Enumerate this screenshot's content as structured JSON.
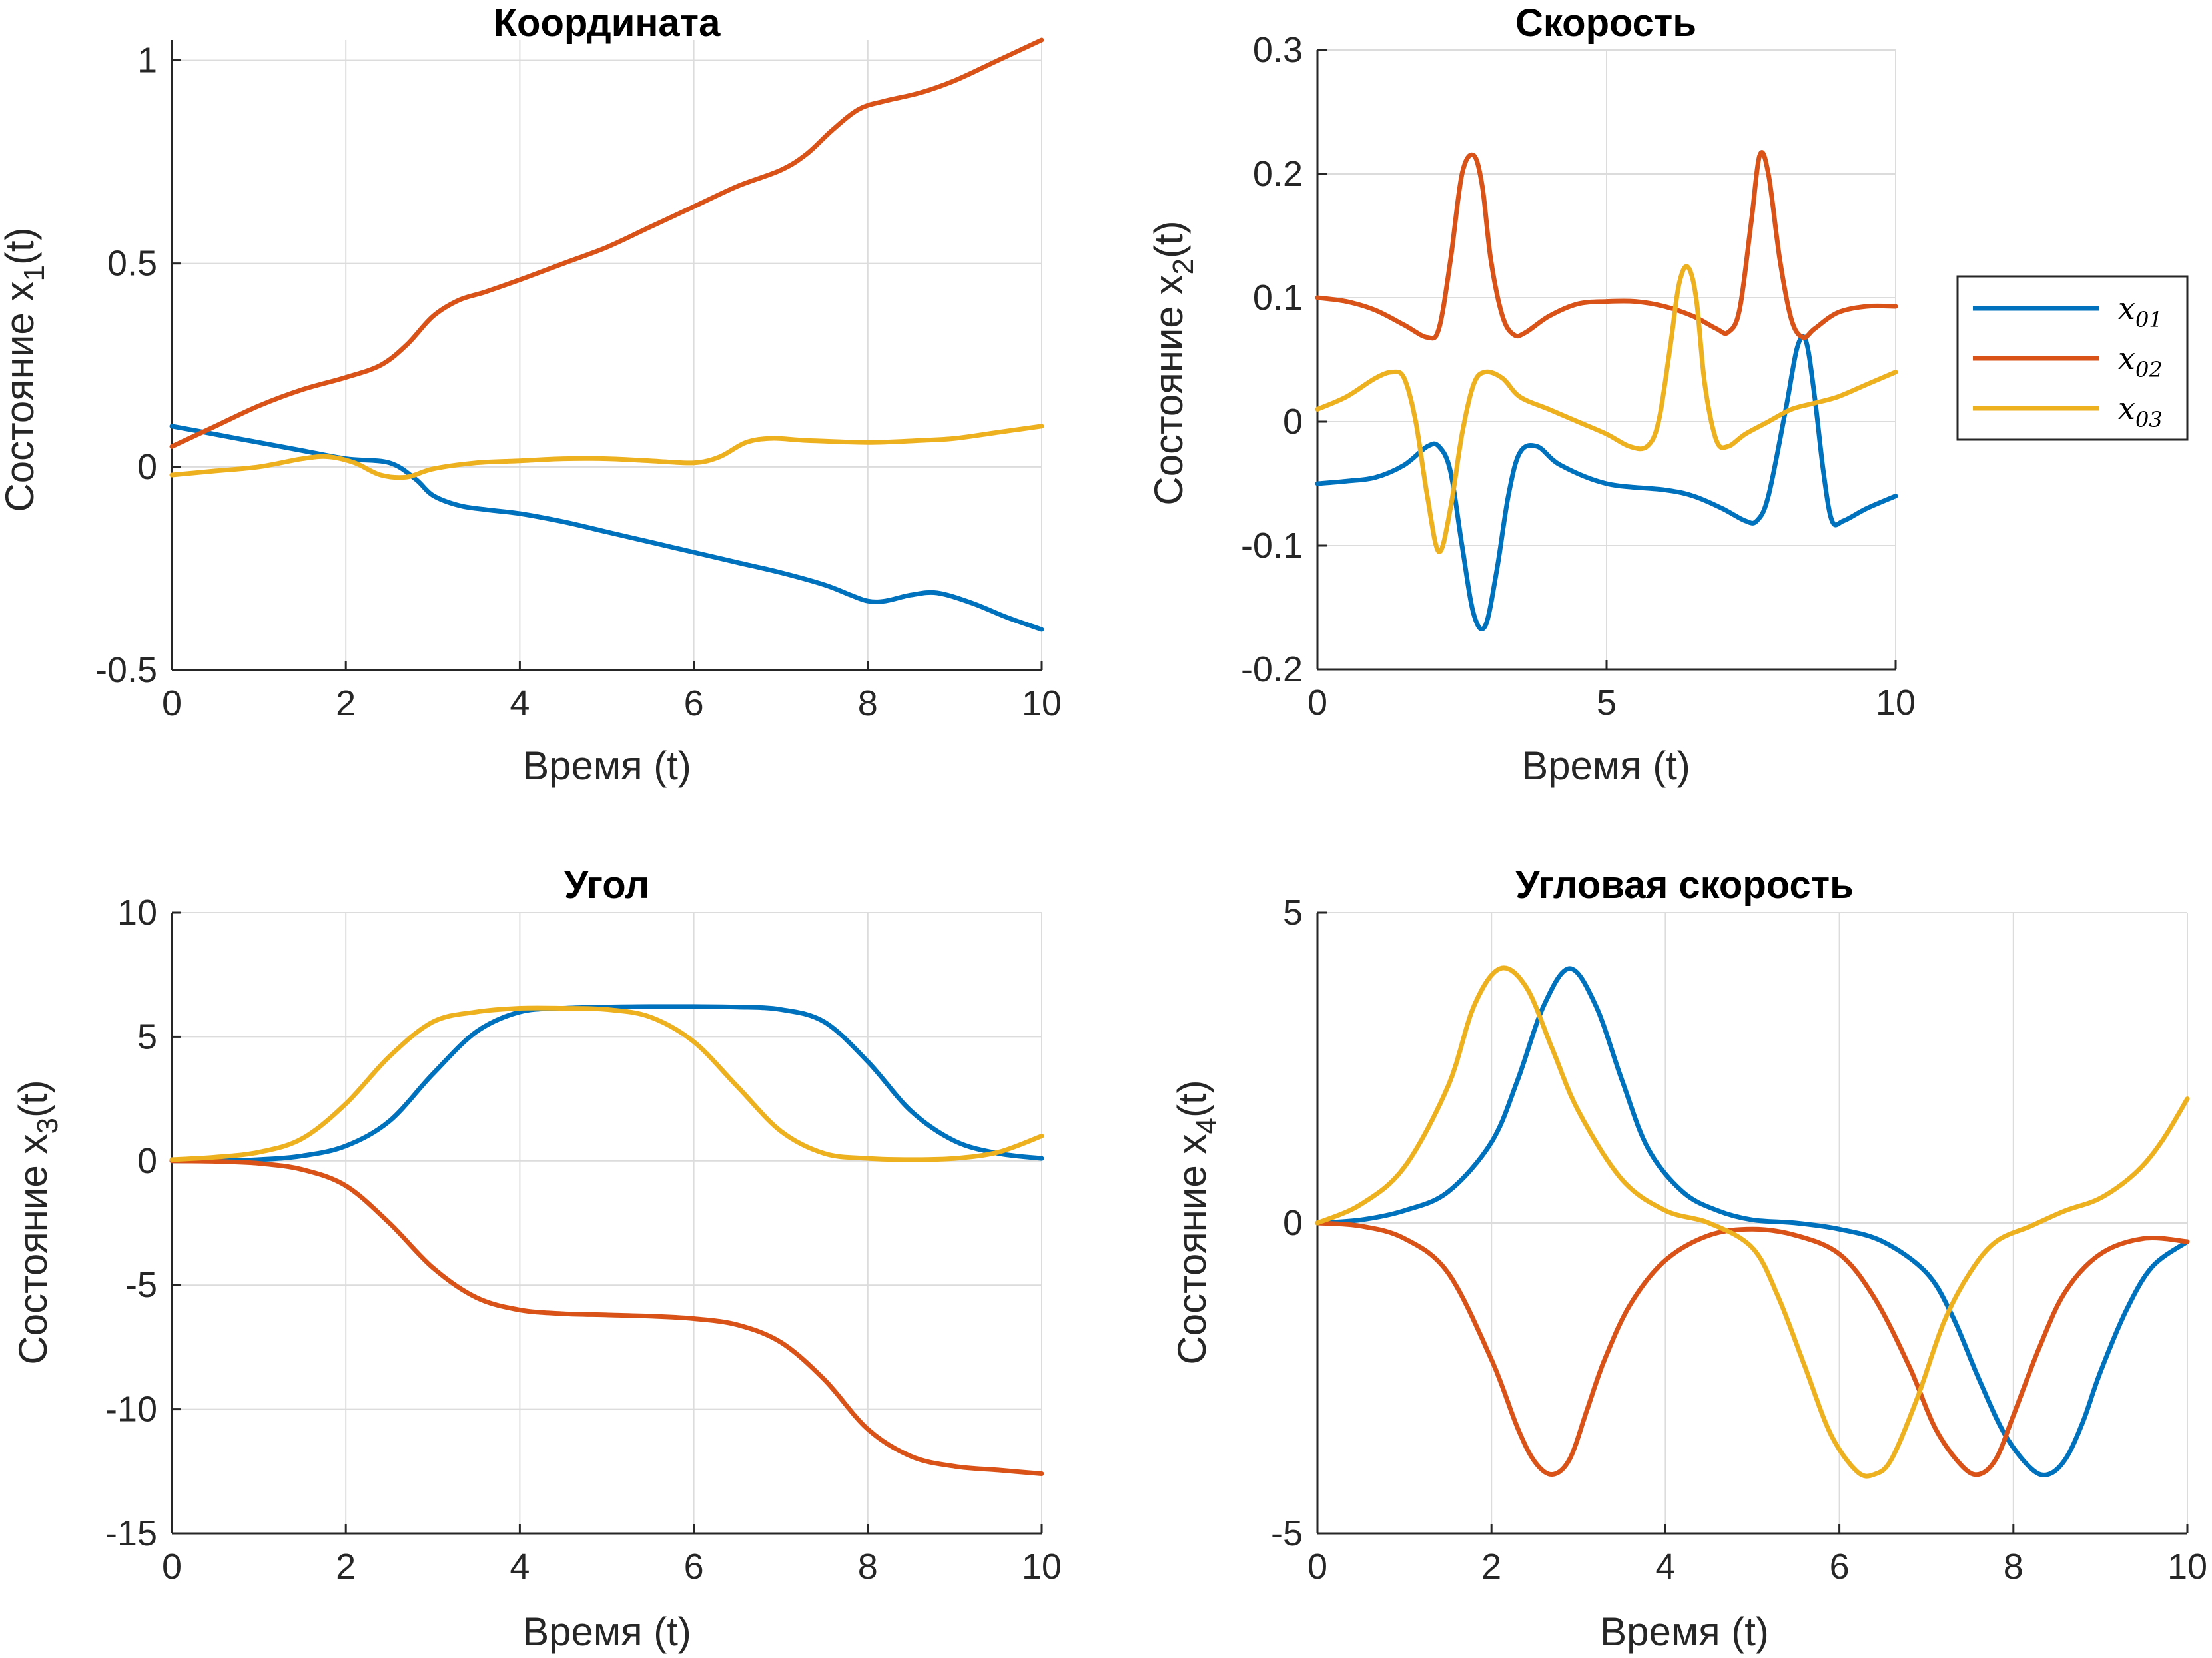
{
  "colors": {
    "x01": "#0072BD",
    "x02": "#D95319",
    "x03": "#EDB120",
    "grid": "#DCDCDC",
    "axis": "#262626"
  },
  "legend": {
    "entries": [
      {
        "key": "x01",
        "base": "x",
        "sub": "01"
      },
      {
        "key": "x02",
        "base": "x",
        "sub": "02"
      },
      {
        "key": "x03",
        "base": "x",
        "sub": "03"
      }
    ]
  },
  "chart_data": [
    {
      "type": "line",
      "title": "Координата",
      "xlabel": "Время (t)",
      "ylabel": {
        "base": "Состояние x",
        "sub": "1",
        "suffix": "(t)"
      },
      "xlim": [
        0,
        10
      ],
      "ylim": [
        -0.5,
        1.05
      ],
      "xticks": [
        0,
        2,
        4,
        6,
        8,
        10
      ],
      "yticks": [
        -0.5,
        0,
        0.5,
        1
      ],
      "ytick_labels": [
        "-0.5",
        "0",
        "0.5",
        "1"
      ],
      "grid": true,
      "series": [
        {
          "key": "x01",
          "x": [
            0,
            0.5,
            1,
            1.5,
            2,
            2.5,
            2.8,
            3,
            3.3,
            3.6,
            4,
            4.5,
            5,
            5.5,
            6,
            6.5,
            7,
            7.5,
            7.8,
            8,
            8.2,
            8.5,
            8.8,
            9.2,
            9.6,
            10
          ],
          "y": [
            0.1,
            0.08,
            0.06,
            0.04,
            0.02,
            0.01,
            -0.03,
            -0.07,
            -0.095,
            -0.105,
            -0.115,
            -0.135,
            -0.16,
            -0.185,
            -0.21,
            -0.235,
            -0.26,
            -0.29,
            -0.315,
            -0.33,
            -0.33,
            -0.315,
            -0.31,
            -0.335,
            -0.37,
            -0.4
          ]
        },
        {
          "key": "x02",
          "x": [
            0,
            0.5,
            1,
            1.5,
            2,
            2.4,
            2.7,
            3,
            3.3,
            3.6,
            4,
            4.5,
            5,
            5.5,
            6,
            6.5,
            7,
            7.3,
            7.6,
            7.9,
            8.2,
            8.6,
            9,
            9.5,
            10
          ],
          "y": [
            0.05,
            0.1,
            0.15,
            0.19,
            0.22,
            0.25,
            0.3,
            0.37,
            0.41,
            0.43,
            0.46,
            0.5,
            0.54,
            0.59,
            0.64,
            0.69,
            0.73,
            0.77,
            0.83,
            0.88,
            0.9,
            0.92,
            0.95,
            1.0,
            1.05
          ]
        },
        {
          "key": "x03",
          "x": [
            0,
            0.5,
            1,
            1.5,
            1.8,
            2.1,
            2.4,
            2.7,
            3,
            3.5,
            4,
            4.5,
            5,
            5.5,
            6,
            6.3,
            6.6,
            6.9,
            7.3,
            8,
            8.6,
            9,
            9.5,
            10
          ],
          "y": [
            -0.02,
            -0.01,
            0.0,
            0.02,
            0.025,
            0.01,
            -0.02,
            -0.025,
            -0.005,
            0.01,
            0.015,
            0.02,
            0.02,
            0.015,
            0.01,
            0.025,
            0.06,
            0.07,
            0.065,
            0.06,
            0.065,
            0.07,
            0.085,
            0.1
          ]
        }
      ]
    },
    {
      "type": "line",
      "title": "Скорость",
      "xlabel": "Время (t)",
      "ylabel": {
        "base": "Состояние x",
        "sub": "2",
        "suffix": "(t)"
      },
      "xlim": [
        0,
        10
      ],
      "ylim": [
        -0.2,
        0.3
      ],
      "xticks": [
        0,
        5,
        10
      ],
      "yticks": [
        -0.2,
        -0.1,
        0,
        0.1,
        0.2,
        0.3
      ],
      "ytick_labels": [
        "-0.2",
        "-0.1",
        "0",
        "0.1",
        "0.2",
        "0.3"
      ],
      "grid": true,
      "series": [
        {
          "key": "x01",
          "x": [
            0,
            0.5,
            1,
            1.5,
            1.9,
            2.1,
            2.3,
            2.5,
            2.7,
            2.9,
            3.1,
            3.3,
            3.5,
            3.8,
            4.2,
            5,
            6,
            6.5,
            7,
            7.4,
            7.6,
            7.8,
            8.1,
            8.3,
            8.45,
            8.6,
            8.75,
            8.9,
            9.1,
            9.5,
            10
          ],
          "y": [
            -0.05,
            -0.048,
            -0.045,
            -0.035,
            -0.02,
            -0.02,
            -0.04,
            -0.1,
            -0.155,
            -0.165,
            -0.12,
            -0.06,
            -0.025,
            -0.02,
            -0.035,
            -0.05,
            -0.055,
            -0.06,
            -0.07,
            -0.08,
            -0.08,
            -0.06,
            0.01,
            0.06,
            0.065,
            0.02,
            -0.04,
            -0.08,
            -0.08,
            -0.07,
            -0.06
          ]
        },
        {
          "key": "x02",
          "x": [
            0,
            0.5,
            1,
            1.5,
            1.9,
            2.1,
            2.3,
            2.5,
            2.7,
            2.85,
            3.0,
            3.2,
            3.4,
            3.6,
            4,
            4.5,
            5,
            5.5,
            6,
            6.5,
            6.9,
            7.1,
            7.3,
            7.5,
            7.65,
            7.8,
            8.0,
            8.2,
            8.4,
            8.6,
            9,
            9.5,
            10
          ],
          "y": [
            0.1,
            0.097,
            0.09,
            0.078,
            0.068,
            0.075,
            0.13,
            0.2,
            0.215,
            0.19,
            0.13,
            0.085,
            0.07,
            0.072,
            0.085,
            0.095,
            0.097,
            0.097,
            0.093,
            0.085,
            0.075,
            0.072,
            0.09,
            0.16,
            0.215,
            0.2,
            0.13,
            0.082,
            0.068,
            0.075,
            0.088,
            0.093,
            0.093
          ]
        },
        {
          "key": "x03",
          "x": [
            0,
            0.5,
            1,
            1.3,
            1.5,
            1.7,
            1.9,
            2.1,
            2.3,
            2.5,
            2.7,
            2.9,
            3.2,
            3.5,
            4,
            4.5,
            5,
            5.4,
            5.7,
            5.9,
            6.1,
            6.25,
            6.4,
            6.55,
            6.7,
            6.9,
            7.1,
            7.4,
            7.8,
            8.2,
            8.6,
            9,
            9.5,
            10
          ],
          "y": [
            0.01,
            0.02,
            0.035,
            0.04,
            0.035,
            0.0,
            -0.06,
            -0.105,
            -0.07,
            -0.01,
            0.03,
            0.04,
            0.035,
            0.02,
            0.01,
            0.0,
            -0.01,
            -0.02,
            -0.02,
            0.0,
            0.06,
            0.11,
            0.125,
            0.1,
            0.03,
            -0.015,
            -0.02,
            -0.01,
            0.0,
            0.01,
            0.015,
            0.02,
            0.03,
            0.04
          ]
        }
      ]
    },
    {
      "type": "line",
      "title": "Угол",
      "xlabel": "Время (t)",
      "ylabel": {
        "base": "Состояние x",
        "sub": "3",
        "suffix": "(t)"
      },
      "xlim": [
        0,
        10
      ],
      "ylim": [
        -15,
        10
      ],
      "xticks": [
        0,
        2,
        4,
        6,
        8,
        10
      ],
      "yticks": [
        -15,
        -10,
        -5,
        0,
        5,
        10
      ],
      "ytick_labels": [
        "-15",
        "-10",
        "-5",
        "0",
        "5",
        "10"
      ],
      "grid": true,
      "series": [
        {
          "key": "x01",
          "x": [
            0,
            0.5,
            1,
            1.5,
            2,
            2.5,
            3,
            3.5,
            4,
            4.5,
            5,
            5.5,
            6,
            6.5,
            7,
            7.5,
            8,
            8.5,
            9,
            9.5,
            10
          ],
          "y": [
            0,
            0.0,
            0.05,
            0.2,
            0.6,
            1.6,
            3.5,
            5.2,
            6.0,
            6.15,
            6.2,
            6.22,
            6.22,
            6.2,
            6.1,
            5.6,
            4.0,
            2.0,
            0.8,
            0.3,
            0.1
          ]
        },
        {
          "key": "x02",
          "x": [
            0,
            0.5,
            1,
            1.5,
            2,
            2.5,
            3,
            3.5,
            4,
            4.5,
            5,
            5.5,
            6,
            6.5,
            7,
            7.5,
            8,
            8.5,
            9,
            9.5,
            10
          ],
          "y": [
            0,
            -0.02,
            -0.1,
            -0.35,
            -1.0,
            -2.5,
            -4.3,
            -5.5,
            -6.0,
            -6.15,
            -6.2,
            -6.25,
            -6.35,
            -6.6,
            -7.3,
            -8.8,
            -10.8,
            -11.9,
            -12.3,
            -12.45,
            -12.6
          ]
        },
        {
          "key": "x03",
          "x": [
            0,
            0.5,
            1,
            1.5,
            2,
            2.5,
            3,
            3.5,
            4,
            4.5,
            5,
            5.5,
            6,
            6.5,
            7,
            7.5,
            8,
            8.5,
            9,
            9.5,
            10
          ],
          "y": [
            0.05,
            0.15,
            0.35,
            0.9,
            2.3,
            4.2,
            5.6,
            6.0,
            6.15,
            6.15,
            6.1,
            5.8,
            4.8,
            3.0,
            1.2,
            0.3,
            0.1,
            0.05,
            0.1,
            0.35,
            1.0
          ]
        }
      ]
    },
    {
      "type": "line",
      "title": "Угловая скорость",
      "xlabel": "Время (t)",
      "ylabel": {
        "base": "Состояние x",
        "sub": "4",
        "suffix": "(t)"
      },
      "xlim": [
        0,
        10
      ],
      "ylim": [
        -5,
        5
      ],
      "xticks": [
        0,
        2,
        4,
        6,
        8,
        10
      ],
      "yticks": [
        -5,
        0,
        5
      ],
      "ytick_labels": [
        "-5",
        "0",
        "5"
      ],
      "grid": true,
      "series": [
        {
          "key": "x01",
          "x": [
            0,
            0.5,
            1,
            1.5,
            2,
            2.3,
            2.6,
            2.9,
            3.2,
            3.5,
            3.8,
            4.2,
            4.6,
            5,
            5.5,
            6,
            6.5,
            7,
            7.3,
            7.6,
            7.9,
            8.2,
            8.4,
            8.6,
            8.8,
            9,
            9.3,
            9.6,
            10
          ],
          "y": [
            0,
            0.05,
            0.2,
            0.5,
            1.3,
            2.3,
            3.5,
            4.1,
            3.5,
            2.3,
            1.2,
            0.5,
            0.2,
            0.05,
            0.0,
            -0.1,
            -0.3,
            -0.8,
            -1.5,
            -2.5,
            -3.4,
            -3.95,
            -4.05,
            -3.8,
            -3.2,
            -2.4,
            -1.4,
            -0.7,
            -0.3
          ]
        },
        {
          "key": "x02",
          "x": [
            0,
            0.5,
            1,
            1.5,
            2,
            2.3,
            2.5,
            2.7,
            2.9,
            3.1,
            3.3,
            3.6,
            4,
            4.5,
            5,
            5.5,
            6,
            6.4,
            6.8,
            7.1,
            7.4,
            7.6,
            7.8,
            8,
            8.3,
            8.6,
            9,
            9.5,
            10
          ],
          "y": [
            0,
            -0.05,
            -0.25,
            -0.8,
            -2.2,
            -3.3,
            -3.85,
            -4.05,
            -3.8,
            -3.0,
            -2.2,
            -1.3,
            -0.6,
            -0.2,
            -0.1,
            -0.2,
            -0.5,
            -1.2,
            -2.3,
            -3.3,
            -3.9,
            -4.05,
            -3.8,
            -3.1,
            -2.0,
            -1.1,
            -0.5,
            -0.25,
            -0.3
          ]
        },
        {
          "key": "x03",
          "x": [
            0,
            0.5,
            1,
            1.5,
            1.8,
            2.1,
            2.4,
            2.7,
            3,
            3.5,
            4,
            4.5,
            5,
            5.3,
            5.6,
            5.9,
            6.2,
            6.4,
            6.6,
            6.9,
            7.2,
            7.5,
            7.8,
            8.2,
            8.6,
            9,
            9.4,
            9.7,
            10
          ],
          "y": [
            0,
            0.3,
            0.9,
            2.2,
            3.5,
            4.1,
            3.8,
            2.8,
            1.8,
            0.7,
            0.2,
            0.0,
            -0.4,
            -1.2,
            -2.3,
            -3.4,
            -4.0,
            -4.05,
            -3.8,
            -2.8,
            -1.6,
            -0.8,
            -0.3,
            -0.05,
            0.2,
            0.4,
            0.8,
            1.3,
            2.0
          ]
        }
      ]
    }
  ]
}
